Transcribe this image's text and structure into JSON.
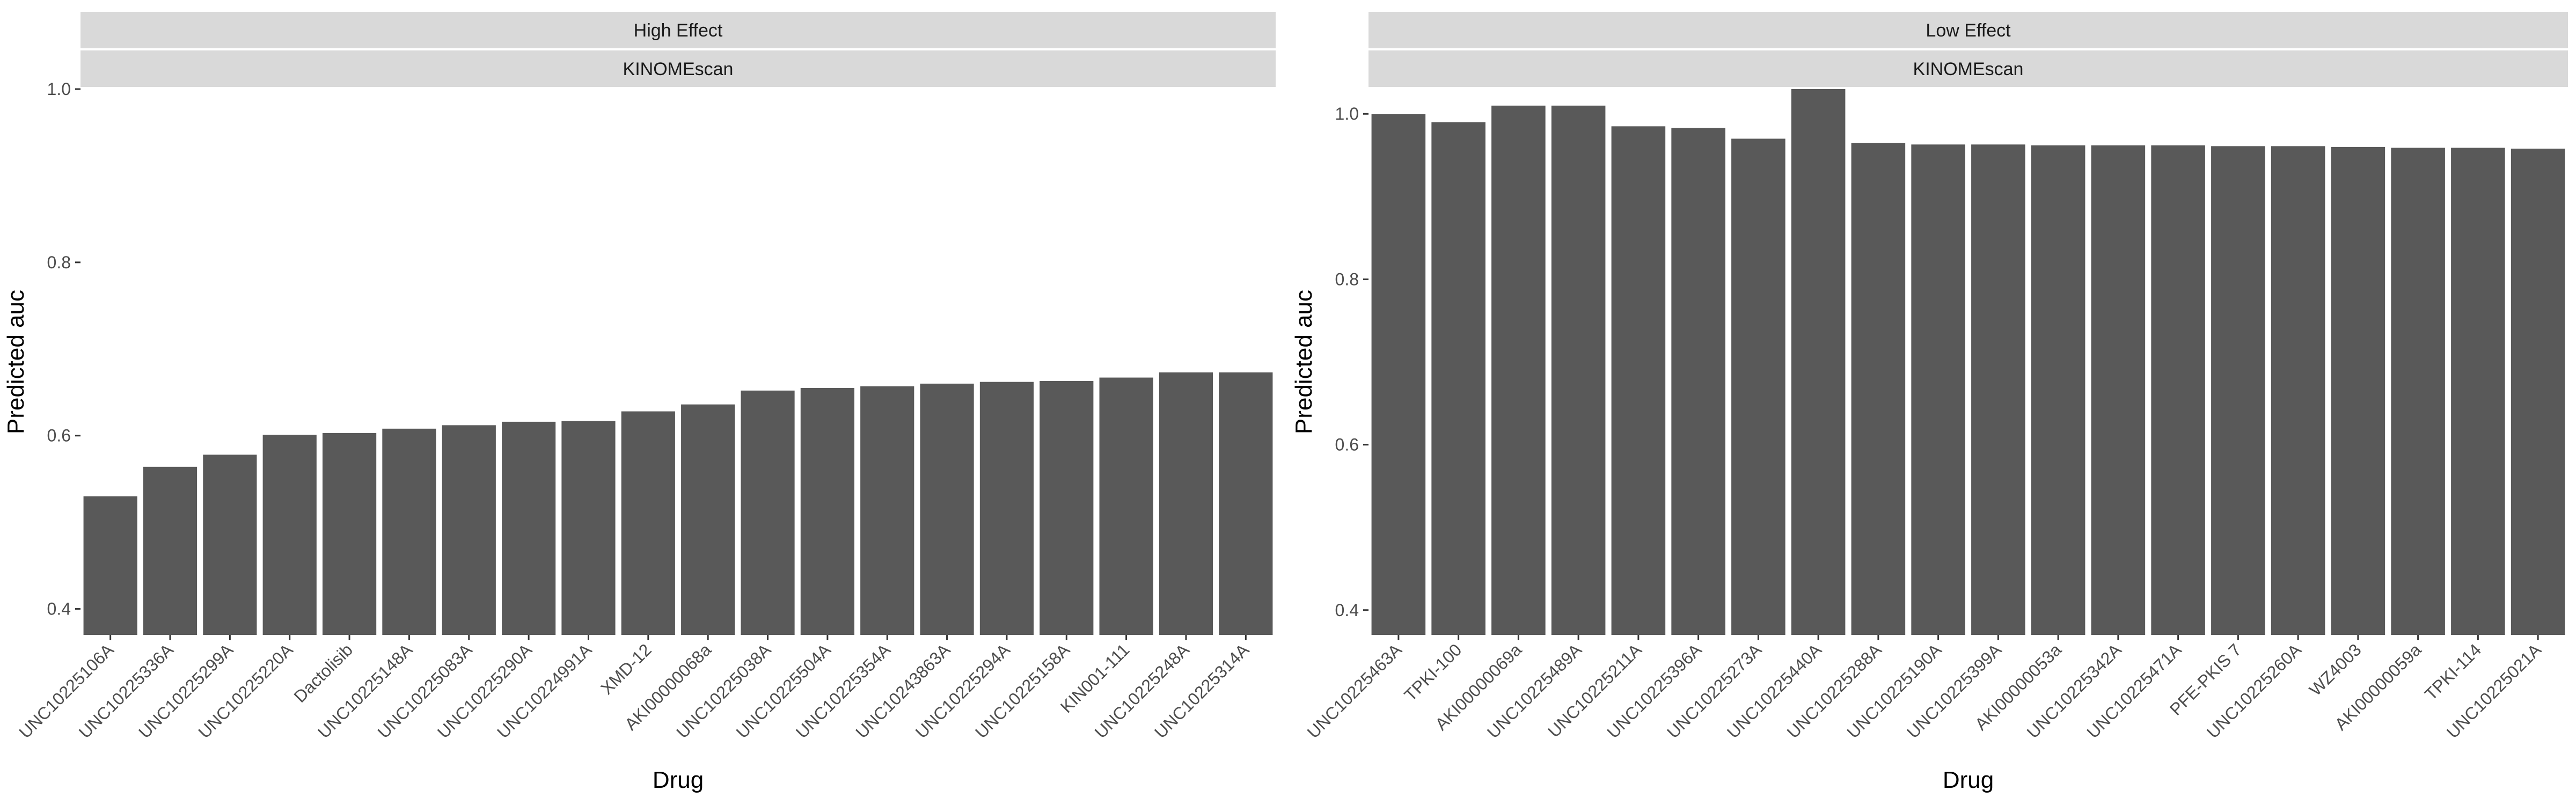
{
  "chart_data": [
    {
      "type": "bar",
      "facet": [
        "High Effect",
        "KINOMEscan"
      ],
      "xlabel": "Drug",
      "ylabel": "Predicted auc",
      "ylim": [
        0.37,
        1.0
      ],
      "yticks": [
        0.4,
        0.6,
        0.8,
        1.0
      ],
      "ytick_labels": [
        "0.4",
        "0.6",
        "0.8",
        "1.0"
      ],
      "grid": false,
      "bar_color": "#595959",
      "categories": [
        "UNC10225106A",
        "UNC10225336A",
        "UNC10225299A",
        "UNC10225220A",
        "Dactolisib",
        "UNC10225148A",
        "UNC10225083A",
        "UNC10225290A",
        "UNC10224991A",
        "XMD-12",
        "AKI00000068a",
        "UNC10225038A",
        "UNC10225504A",
        "UNC10225354A",
        "UNC10243863A",
        "UNC10225294A",
        "UNC10225158A",
        "KIN001-111",
        "UNC10225248A",
        "UNC10225314A"
      ],
      "values": [
        0.53,
        0.564,
        0.578,
        0.601,
        0.603,
        0.608,
        0.612,
        0.616,
        0.617,
        0.628,
        0.636,
        0.652,
        0.655,
        0.657,
        0.66,
        0.662,
        0.663,
        0.667,
        0.673,
        0.673
      ]
    },
    {
      "type": "bar",
      "facet": [
        "Low Effect",
        "KINOMEscan"
      ],
      "xlabel": "Drug",
      "ylabel": "Predicted auc",
      "ylim": [
        0.37,
        1.03
      ],
      "yticks": [
        0.4,
        0.6,
        0.8,
        1.0
      ],
      "ytick_labels": [
        "0.4",
        "0.6",
        "0.8",
        "1.0"
      ],
      "grid": false,
      "bar_color": "#595959",
      "categories": [
        "UNC10225463A",
        "TPKI-100",
        "AKI00000069a",
        "UNC10225489A",
        "UNC10225211A",
        "UNC10225396A",
        "UNC10225273A",
        "UNC10225440A",
        "UNC10225288A",
        "UNC10225190A",
        "UNC10225399A",
        "AKI00000053a",
        "UNC10225342A",
        "UNC10225471A",
        "PFE-PKIS 7",
        "UNC10225260A",
        "WZ4003",
        "AKI00000059a",
        "TPKI-114",
        "UNC10225021A"
      ],
      "values": [
        1.0,
        0.99,
        1.01,
        1.01,
        0.985,
        0.983,
        0.97,
        1.03,
        0.965,
        0.963,
        0.963,
        0.962,
        0.962,
        0.962,
        0.961,
        0.961,
        0.96,
        0.959,
        0.959,
        0.958
      ]
    }
  ]
}
